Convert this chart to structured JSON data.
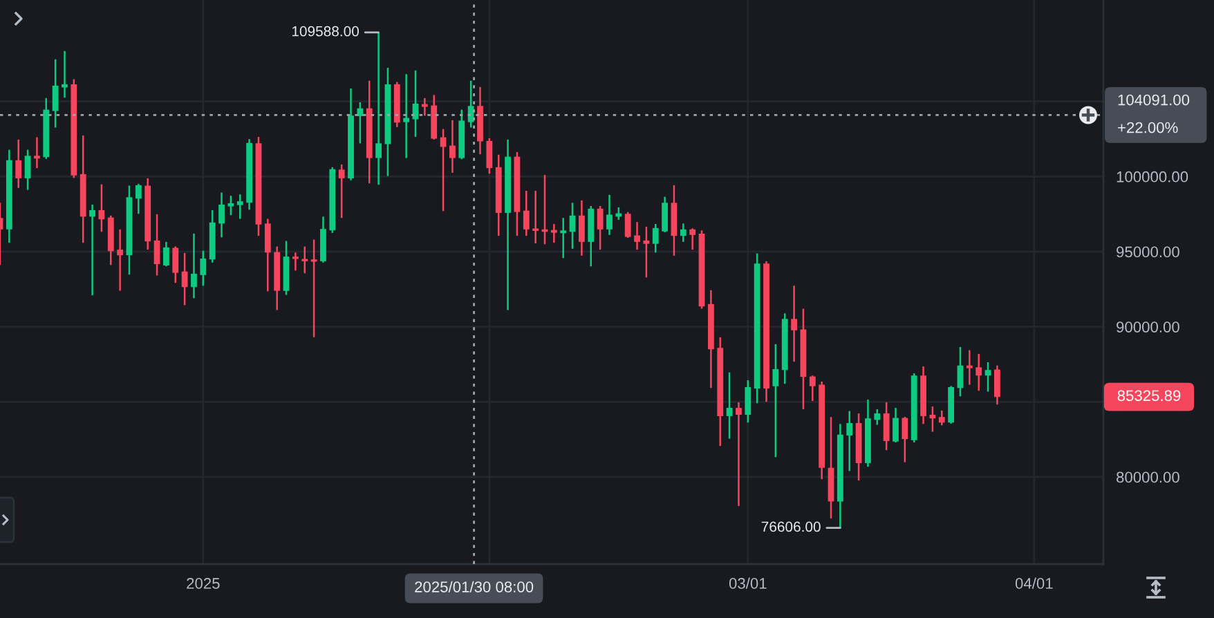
{
  "chart_data": {
    "type": "candlestick",
    "x": [
      "2024-12-10",
      "2024-12-11",
      "2024-12-12",
      "2024-12-13",
      "2024-12-14",
      "2024-12-15",
      "2024-12-16",
      "2024-12-17",
      "2024-12-18",
      "2024-12-19",
      "2024-12-20",
      "2024-12-21",
      "2024-12-22",
      "2024-12-23",
      "2024-12-24",
      "2024-12-25",
      "2024-12-26",
      "2024-12-27",
      "2024-12-28",
      "2024-12-29",
      "2024-12-30",
      "2024-12-31",
      "2025-01-01",
      "2025-01-02",
      "2025-01-03",
      "2025-01-04",
      "2025-01-05",
      "2025-01-06",
      "2025-01-07",
      "2025-01-08",
      "2025-01-09",
      "2025-01-10",
      "2025-01-11",
      "2025-01-12",
      "2025-01-13",
      "2025-01-14",
      "2025-01-15",
      "2025-01-16",
      "2025-01-17",
      "2025-01-18",
      "2025-01-19",
      "2025-01-20",
      "2025-01-21",
      "2025-01-22",
      "2025-01-23",
      "2025-01-24",
      "2025-01-25",
      "2025-01-26",
      "2025-01-27",
      "2025-01-28",
      "2025-01-29",
      "2025-01-30",
      "2025-01-31",
      "2025-02-01",
      "2025-02-02",
      "2025-02-03",
      "2025-02-04",
      "2025-02-05",
      "2025-02-06",
      "2025-02-07",
      "2025-02-08",
      "2025-02-09",
      "2025-02-10",
      "2025-02-11",
      "2025-02-12",
      "2025-02-13",
      "2025-02-14",
      "2025-02-15",
      "2025-02-16",
      "2025-02-17",
      "2025-02-18",
      "2025-02-19",
      "2025-02-20",
      "2025-02-21",
      "2025-02-22",
      "2025-02-23",
      "2025-02-24",
      "2025-02-25",
      "2025-02-26",
      "2025-02-27",
      "2025-02-28",
      "2025-03-01",
      "2025-03-02",
      "2025-03-03",
      "2025-03-04",
      "2025-03-05",
      "2025-03-06",
      "2025-03-07",
      "2025-03-08",
      "2025-03-09",
      "2025-03-10",
      "2025-03-11",
      "2025-03-12",
      "2025-03-13",
      "2025-03-14",
      "2025-03-15",
      "2025-03-16",
      "2025-03-17",
      "2025-03-18",
      "2025-03-19",
      "2025-03-20",
      "2025-03-21",
      "2025-03-22",
      "2025-03-23",
      "2025-03-24",
      "2025-03-25",
      "2025-03-26",
      "2025-03-27",
      "2025-03-28"
    ],
    "ohlc": [
      [
        97240,
        98260,
        94110,
        96480
      ],
      [
        96480,
        101780,
        95590,
        101080
      ],
      [
        101080,
        102460,
        99240,
        99880
      ],
      [
        99880,
        101780,
        99110,
        101380
      ],
      [
        101380,
        102610,
        100560,
        101200
      ],
      [
        101290,
        105220,
        101170,
        104450
      ],
      [
        104360,
        107800,
        103260,
        106050
      ],
      [
        105930,
        108350,
        105250,
        106140
      ],
      [
        106140,
        106480,
        99910,
        100070
      ],
      [
        100160,
        102730,
        95590,
        97330
      ],
      [
        97330,
        98130,
        92090,
        97760
      ],
      [
        97760,
        99480,
        96320,
        97150
      ],
      [
        97270,
        97400,
        94110,
        95030
      ],
      [
        95130,
        96480,
        92400,
        94760
      ],
      [
        94760,
        99390,
        93470,
        98620
      ],
      [
        98530,
        99510,
        97520,
        99420
      ],
      [
        99390,
        99880,
        95130,
        95680
      ],
      [
        95740,
        97490,
        93410,
        94170
      ],
      [
        94080,
        95650,
        94020,
        95280
      ],
      [
        95250,
        95350,
        92920,
        93590
      ],
      [
        93680,
        94910,
        91440,
        92640
      ],
      [
        92640,
        96200,
        91900,
        93530
      ],
      [
        93440,
        95060,
        92730,
        94540
      ],
      [
        94480,
        97760,
        94270,
        96940
      ],
      [
        96870,
        98930,
        95950,
        98130
      ],
      [
        98010,
        98720,
        97430,
        98220
      ],
      [
        98100,
        98810,
        97180,
        98350
      ],
      [
        98260,
        102490,
        97790,
        102240
      ],
      [
        102210,
        102640,
        96050,
        96810
      ],
      [
        96870,
        97180,
        92360,
        94940
      ],
      [
        94970,
        95340,
        91110,
        92390
      ],
      [
        92390,
        95710,
        92120,
        94670
      ],
      [
        94670,
        94940,
        93740,
        94510
      ],
      [
        94510,
        95340,
        93560,
        94360
      ],
      [
        94480,
        95800,
        89300,
        94330
      ],
      [
        94360,
        97330,
        94270,
        96510
      ],
      [
        96410,
        100620,
        96250,
        100490
      ],
      [
        100460,
        100800,
        97240,
        99880
      ],
      [
        99880,
        105860,
        99750,
        104050
      ],
      [
        104020,
        104940,
        102210,
        104540
      ],
      [
        104540,
        106380,
        99540,
        101230
      ],
      [
        101230,
        109588,
        99450,
        102210
      ],
      [
        102150,
        107240,
        100030,
        106140
      ],
      [
        106140,
        106290,
        103290,
        103590
      ],
      [
        103620,
        106810,
        101230,
        103900
      ],
      [
        103810,
        107060,
        102640,
        104850
      ],
      [
        104820,
        105220,
        104050,
        104640
      ],
      [
        104730,
        105430,
        102460,
        102520
      ],
      [
        102610,
        103160,
        97700,
        101970
      ],
      [
        102060,
        103750,
        100250,
        101230
      ],
      [
        101230,
        104450,
        101150,
        103720
      ],
      [
        103620,
        106380,
        103260,
        104700
      ],
      [
        104700,
        105960,
        101480,
        102340
      ],
      [
        102370,
        102550,
        100190,
        100560
      ],
      [
        100620,
        101450,
        96050,
        97580
      ],
      [
        97580,
        102460,
        91110,
        101320
      ],
      [
        101320,
        101630,
        96050,
        97640
      ],
      [
        97730,
        99050,
        96050,
        96480
      ],
      [
        96540,
        99050,
        95550,
        96380
      ],
      [
        96480,
        100100,
        95490,
        96320
      ],
      [
        96440,
        96840,
        95590,
        96260
      ],
      [
        96230,
        97240,
        94570,
        96410
      ],
      [
        96320,
        98250,
        95190,
        97400
      ],
      [
        97400,
        98410,
        94730,
        95650
      ],
      [
        95650,
        98040,
        94020,
        97860
      ],
      [
        97860,
        98040,
        95130,
        96480
      ],
      [
        96480,
        98780,
        96110,
        97460
      ],
      [
        97330,
        97950,
        97120,
        97550
      ],
      [
        97520,
        97640,
        95920,
        95980
      ],
      [
        96080,
        96970,
        95130,
        95650
      ],
      [
        95740,
        96660,
        93280,
        95520
      ],
      [
        95520,
        96840,
        94940,
        96570
      ],
      [
        96350,
        98650,
        96290,
        98250
      ],
      [
        98250,
        99420,
        94730,
        96050
      ],
      [
        96050,
        96870,
        95650,
        96480
      ],
      [
        96480,
        96550,
        95130,
        96110
      ],
      [
        96200,
        96410,
        91200,
        91350
      ],
      [
        91510,
        92430,
        85920,
        88500
      ],
      [
        88590,
        89300,
        82060,
        84050
      ],
      [
        84050,
        86960,
        82550,
        84600
      ],
      [
        84600,
        84970,
        78070,
        84140
      ],
      [
        84140,
        86440,
        83620,
        85980
      ],
      [
        85890,
        94880,
        84910,
        94210
      ],
      [
        94210,
        94360,
        85000,
        85890
      ],
      [
        86040,
        88840,
        81320,
        87180
      ],
      [
        87120,
        90890,
        86200,
        90520
      ],
      [
        90520,
        92730,
        87670,
        89760
      ],
      [
        89820,
        91200,
        84510,
        86660
      ],
      [
        86690,
        86750,
        85060,
        86040
      ],
      [
        86140,
        86350,
        79850,
        80610
      ],
      [
        80610,
        83990,
        77240,
        78370
      ],
      [
        78370,
        83530,
        76606,
        82820
      ],
      [
        82760,
        84390,
        80400,
        83590
      ],
      [
        83590,
        84230,
        79760,
        80920
      ],
      [
        80920,
        85150,
        80680,
        83900
      ],
      [
        83800,
        84510,
        83470,
        84230
      ],
      [
        84230,
        84970,
        81780,
        82390
      ],
      [
        82360,
        84600,
        82300,
        83930
      ],
      [
        83930,
        84000,
        80980,
        82520
      ],
      [
        82450,
        86900,
        82300,
        86750
      ],
      [
        86750,
        87360,
        83530,
        84050
      ],
      [
        84140,
        84690,
        83010,
        83900
      ],
      [
        83990,
        84420,
        83440,
        83620
      ],
      [
        83620,
        86050,
        83550,
        85980
      ],
      [
        85920,
        88650,
        85370,
        87420
      ],
      [
        87420,
        88440,
        86140,
        87240
      ],
      [
        87300,
        88190,
        85740,
        86750
      ],
      [
        86750,
        87640,
        85680,
        87120
      ],
      [
        87150,
        87420,
        84820,
        85325.89
      ]
    ],
    "colors": [
      "#f6465d",
      "#0ecb81",
      "#f6465d",
      "#0ecb81",
      "#f6465d",
      "#0ecb81",
      "#0ecb81",
      "#0ecb81",
      "#f6465d",
      "#f6465d",
      "#0ecb81",
      "#f6465d",
      "#f6465d",
      "#f6465d",
      "#0ecb81",
      "#0ecb81",
      "#f6465d",
      "#f6465d",
      "#0ecb81",
      "#f6465d",
      "#f6465d",
      "#0ecb81",
      "#0ecb81",
      "#0ecb81",
      "#0ecb81",
      "#0ecb81",
      "#0ecb81",
      "#0ecb81",
      "#f6465d",
      "#f6465d",
      "#f6465d",
      "#0ecb81",
      "#f6465d",
      "#f6465d",
      "#f6465d",
      "#0ecb81",
      "#0ecb81",
      "#f6465d",
      "#0ecb81",
      "#0ecb81",
      "#f6465d",
      "#0ecb81",
      "#0ecb81",
      "#f6465d",
      "#0ecb81",
      "#0ecb81",
      "#f6465d",
      "#f6465d",
      "#f6465d",
      "#f6465d",
      "#0ecb81",
      "#0ecb81",
      "#f6465d",
      "#f6465d",
      "#f6465d",
      "#0ecb81",
      "#f6465d",
      "#f6465d",
      "#f6465d",
      "#f6465d",
      "#f6465d",
      "#0ecb81",
      "#0ecb81",
      "#f6465d",
      "#0ecb81",
      "#f6465d",
      "#0ecb81",
      "#0ecb81",
      "#f6465d",
      "#f6465d",
      "#f6465d",
      "#0ecb81",
      "#0ecb81",
      "#f6465d",
      "#0ecb81",
      "#f6465d",
      "#f6465d",
      "#f6465d",
      "#f6465d",
      "#0ecb81",
      "#f6465d",
      "#0ecb81",
      "#0ecb81",
      "#f6465d",
      "#0ecb81",
      "#0ecb81",
      "#f6465d",
      "#f6465d",
      "#f6465d",
      "#f6465d",
      "#f6465d",
      "#0ecb81",
      "#0ecb81",
      "#f6465d",
      "#0ecb81",
      "#0ecb81",
      "#f6465d",
      "#0ecb81",
      "#f6465d",
      "#0ecb81",
      "#f6465d",
      "#f6465d",
      "#f6465d",
      "#0ecb81",
      "#0ecb81",
      "#f6465d",
      "#f6465d",
      "#0ecb81",
      "#f6465d"
    ],
    "xlim": [
      "2024-12-10",
      "2025-04-08T12:00"
    ],
    "ylim": [
      74200,
      111750
    ],
    "xticks": [
      {
        "value": "2025-01-01",
        "label": "2025"
      },
      {
        "value": "2025-02-01",
        "label": null
      },
      {
        "value": "2025-03-01",
        "label": "03/01"
      },
      {
        "value": "2025-04-01",
        "label": "04/01"
      }
    ],
    "yticks": [
      {
        "value": 80000,
        "label": "80000.00"
      },
      {
        "value": 85000,
        "label": null
      },
      {
        "value": 90000,
        "label": "90000.00"
      },
      {
        "value": 95000,
        "label": "95000.00"
      },
      {
        "value": 100000,
        "label": "100000.00"
      },
      {
        "value": 105000,
        "label": null
      }
    ],
    "grid": true,
    "ref_lines": [
      {
        "axis": "x",
        "value": "2025-01-30T08:00",
        "label": "2025/01/30 08:00",
        "line_style": "dotted",
        "color": "#9ea4ac"
      },
      {
        "axis": "y",
        "value": 104091,
        "label": "104091.00\n+22.00%",
        "line_style": "dotted",
        "color": "#9ea4ac"
      }
    ],
    "annotations": [
      {
        "text": "109588.00",
        "x": "2025-01-20",
        "y": 109588
      },
      {
        "text": "76606.00",
        "x": "2025-03-11",
        "y": 76606
      },
      "85325.89"
    ]
  }
}
